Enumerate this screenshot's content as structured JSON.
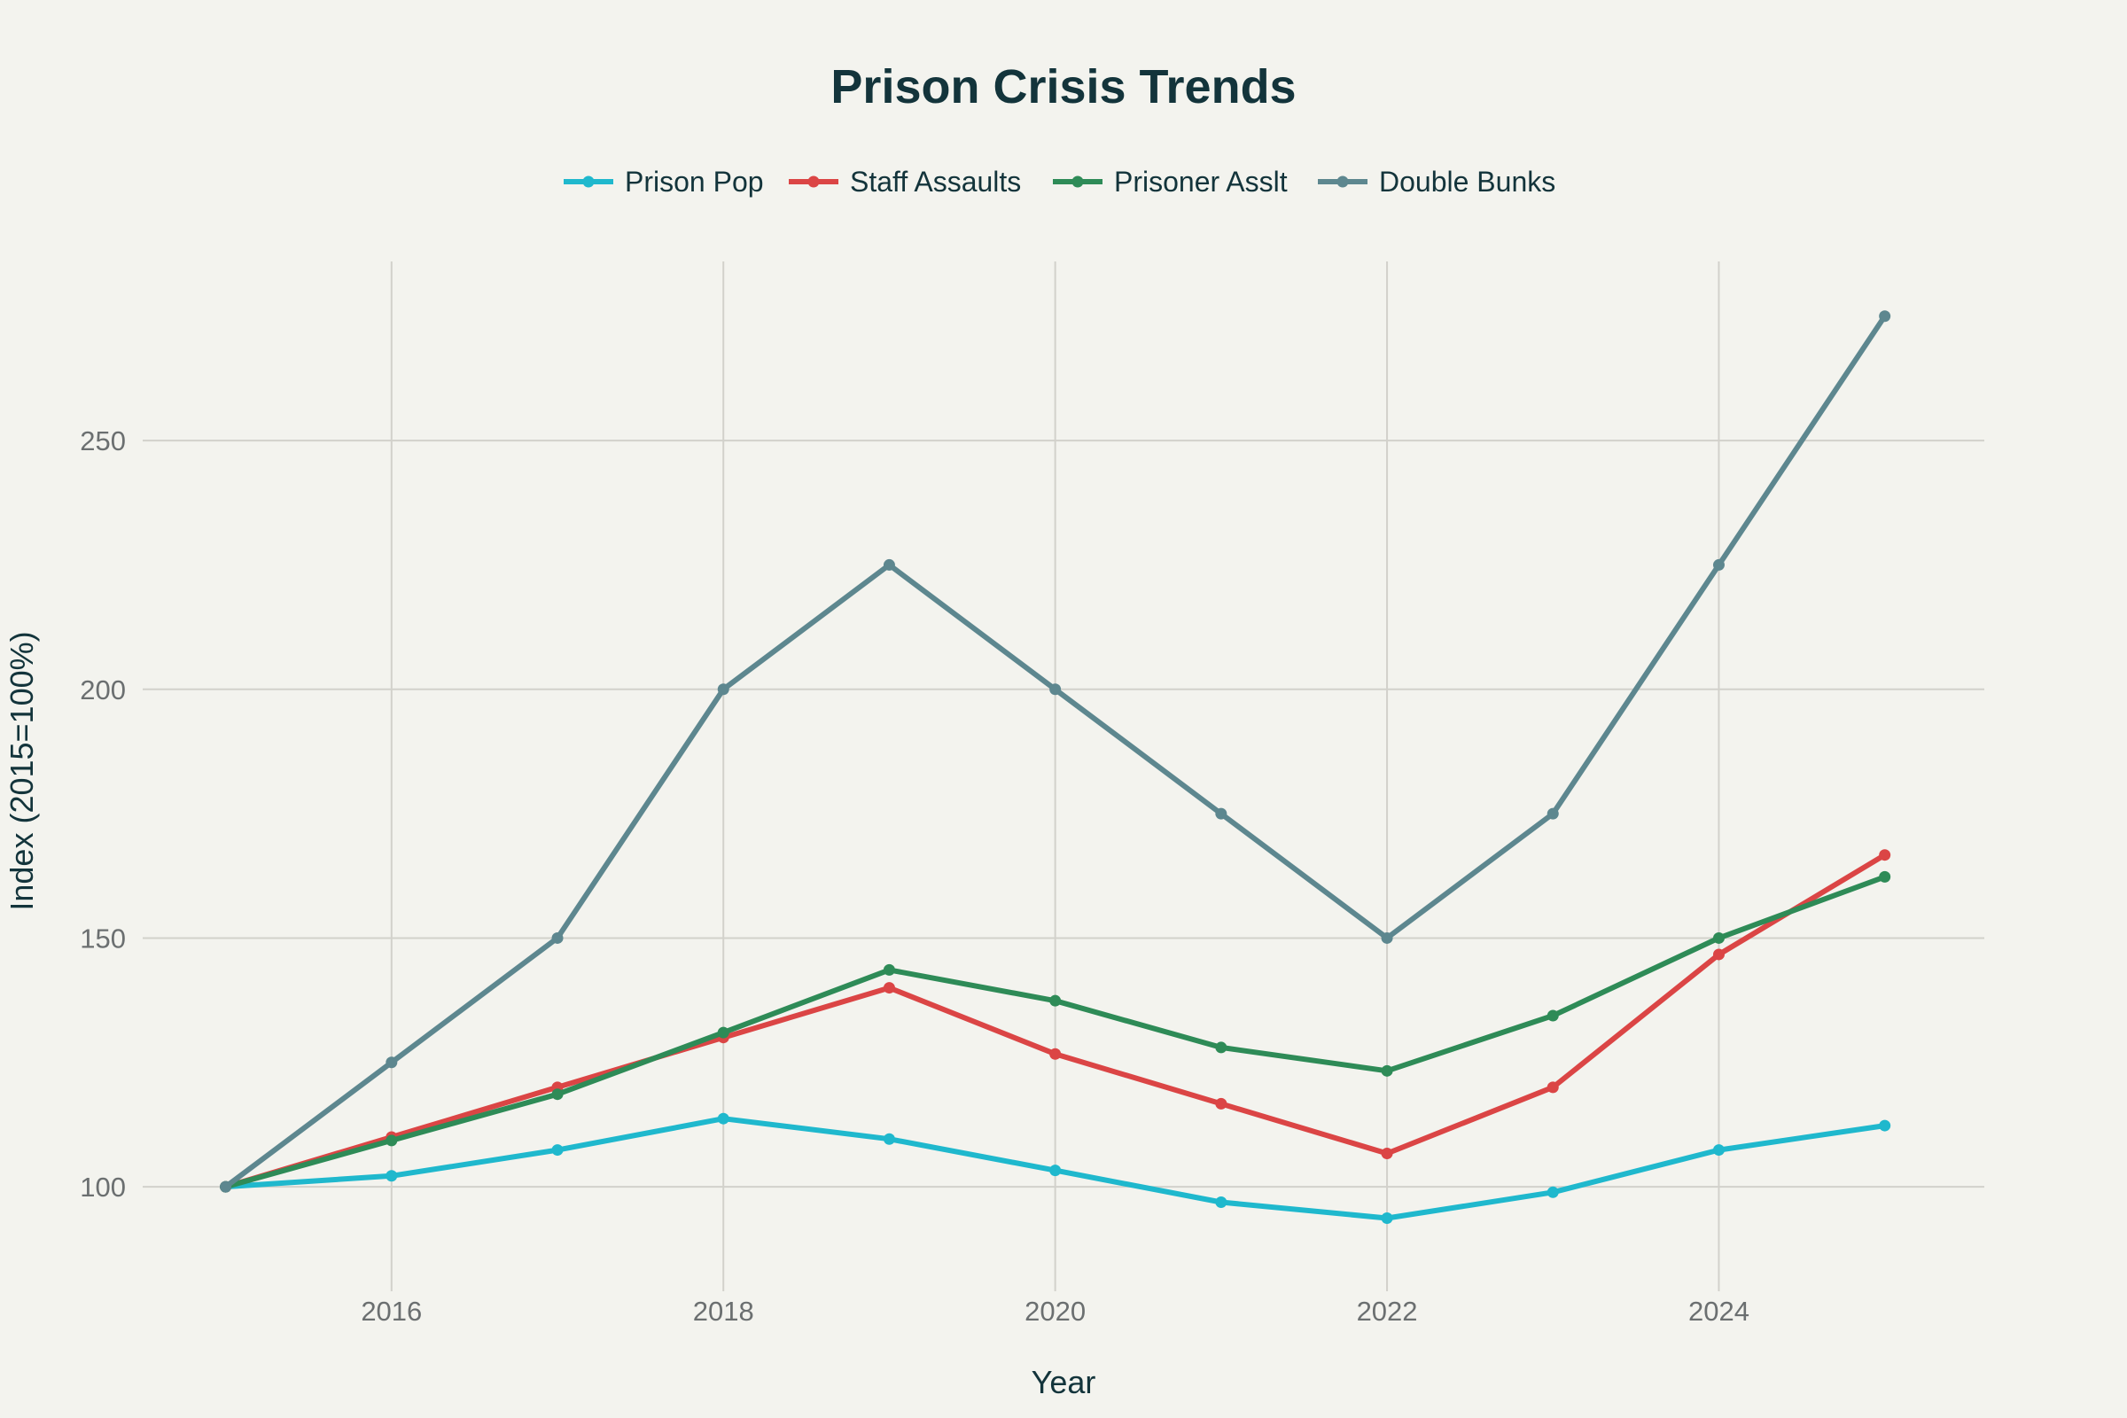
{
  "chart_data": {
    "type": "line",
    "title": "Prison Crisis Trends",
    "xlabel": "Year",
    "ylabel": "Index (2015=100%)",
    "x": [
      2015,
      2016,
      2017,
      2018,
      2019,
      2020,
      2021,
      2022,
      2023,
      2024,
      2025
    ],
    "xticks": [
      2016,
      2018,
      2020,
      2022,
      2024
    ],
    "xtick_labels": [
      "2016",
      "2018",
      "2020",
      "2022",
      "2024"
    ],
    "yticks": [
      100,
      150,
      200,
      250
    ],
    "ytick_labels": [
      "100",
      "150",
      "200",
      "250"
    ],
    "xlim": [
      2014.5,
      2025.6
    ],
    "ylim": [
      79,
      286
    ],
    "grid": true,
    "legend_position": "top-center",
    "series": [
      {
        "name": "Prison Pop",
        "color": "#1fb8cd",
        "values": [
          100,
          102.2,
          107.4,
          113.7,
          109.6,
          103.3,
          96.9,
          93.7,
          98.9,
          107.4,
          112.3
        ]
      },
      {
        "name": "Staff Assaults",
        "color": "#db4545",
        "values": [
          100,
          110,
          120,
          130,
          140,
          126.7,
          116.7,
          106.7,
          120,
          146.7,
          166.7
        ]
      },
      {
        "name": "Prisoner Asslt",
        "color": "#2e8b57",
        "values": [
          100,
          109.3,
          118.6,
          131,
          143.6,
          137.4,
          128,
          123.3,
          134.4,
          150,
          162.3
        ]
      },
      {
        "name": "Double Bunks",
        "color": "#5d878f",
        "values": [
          100,
          125,
          150,
          200,
          225,
          200,
          175,
          150,
          175,
          225,
          275
        ]
      }
    ]
  }
}
